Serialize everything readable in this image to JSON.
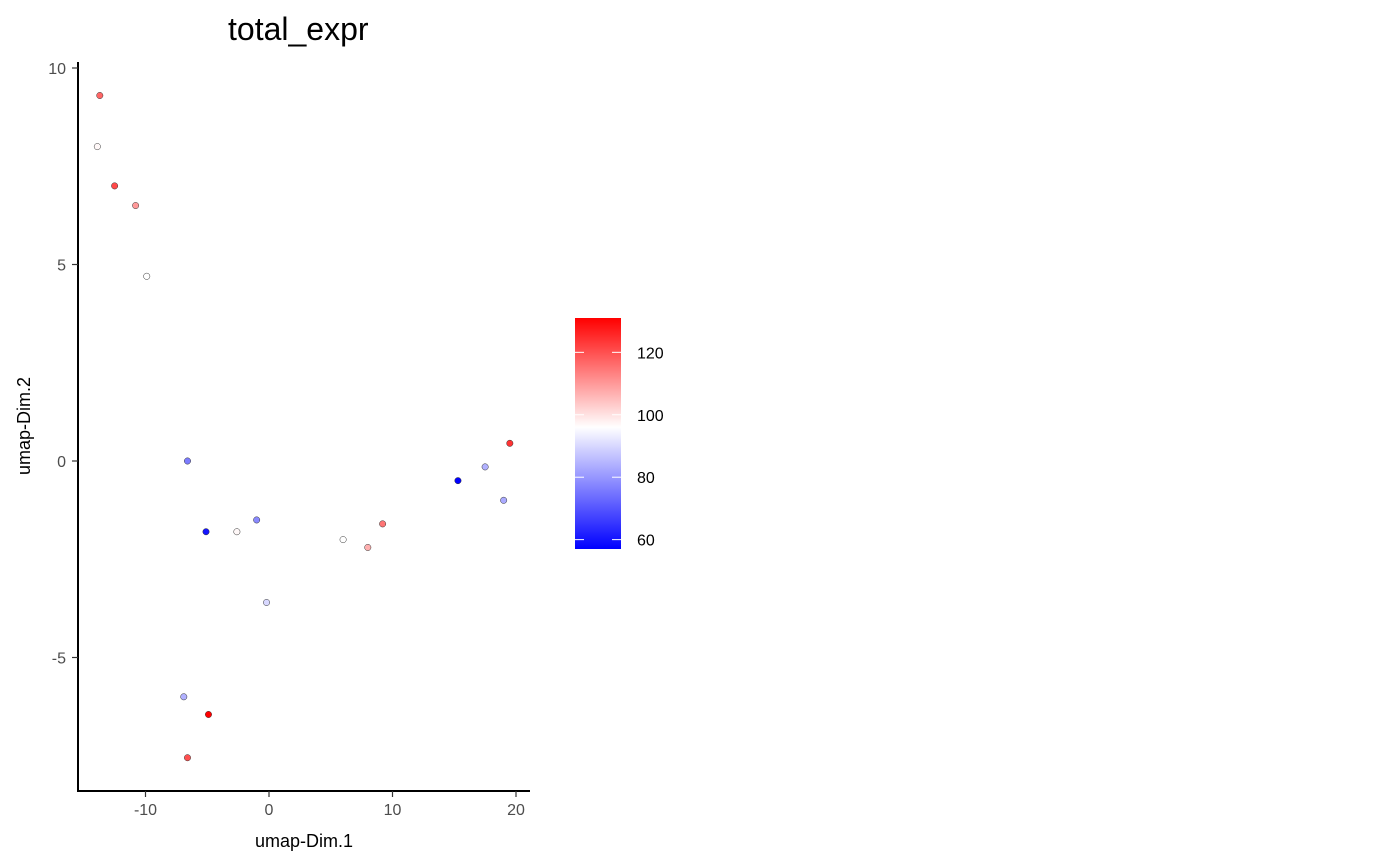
{
  "chart_data": {
    "type": "scatter",
    "title": "total_expr",
    "xlabel": "umap-Dim.1",
    "ylabel": "umap-Dim.2",
    "xlim": [
      -15.5,
      21
    ],
    "ylim": [
      -8.2,
      10.2
    ],
    "xticks": [
      -10,
      0,
      10,
      20
    ],
    "xtick_labels": [
      "-10",
      "0",
      "10",
      "20"
    ],
    "yticks": [
      -5,
      0,
      5,
      10
    ],
    "ytick_labels": [
      "-5",
      "0",
      "5",
      "10"
    ],
    "grid": false,
    "legend": {
      "placement": "right",
      "type": "colorbar",
      "ticks": [
        60,
        80,
        100,
        120
      ],
      "tick_labels": [
        "60",
        "80",
        "100",
        "120"
      ],
      "min": 57,
      "max": 131,
      "midpoint": 96,
      "low_color": "#0000ff",
      "mid_color": "#ffffff",
      "high_color": "#ff0000"
    },
    "points": [
      {
        "x": -13.7,
        "y": 9.3,
        "value": 117
      },
      {
        "x": -13.9,
        "y": 8.0,
        "value": 97
      },
      {
        "x": -12.5,
        "y": 7.0,
        "value": 121
      },
      {
        "x": -10.8,
        "y": 6.5,
        "value": 110
      },
      {
        "x": -9.9,
        "y": 4.7,
        "value": 96
      },
      {
        "x": -6.6,
        "y": 0.0,
        "value": 76
      },
      {
        "x": -5.1,
        "y": -1.8,
        "value": 60
      },
      {
        "x": -2.6,
        "y": -1.8,
        "value": 97
      },
      {
        "x": -1.0,
        "y": -1.5,
        "value": 78
      },
      {
        "x": -0.2,
        "y": -3.6,
        "value": 90
      },
      {
        "x": -6.9,
        "y": -6.0,
        "value": 84
      },
      {
        "x": -4.9,
        "y": -6.45,
        "value": 131
      },
      {
        "x": -6.6,
        "y": -7.55,
        "value": 120
      },
      {
        "x": 6.0,
        "y": -2.0,
        "value": 96
      },
      {
        "x": 8.0,
        "y": -2.2,
        "value": 107
      },
      {
        "x": 9.2,
        "y": -1.6,
        "value": 115
      },
      {
        "x": 15.3,
        "y": -0.5,
        "value": 57
      },
      {
        "x": 17.5,
        "y": -0.15,
        "value": 84
      },
      {
        "x": 19.0,
        "y": -1.0,
        "value": 83
      },
      {
        "x": 19.5,
        "y": 0.45,
        "value": 124
      }
    ]
  }
}
